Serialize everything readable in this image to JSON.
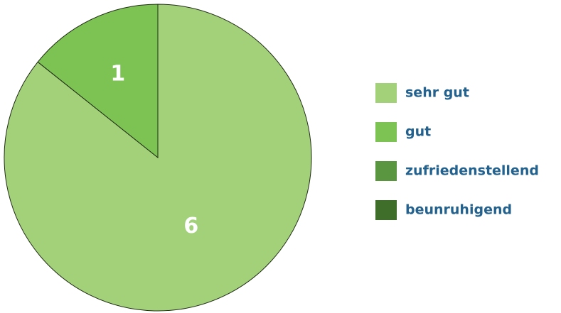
{
  "chart_data": {
    "type": "pie",
    "categories": [
      "sehr gut",
      "gut",
      "zufriedenstellend",
      "beunruhigend"
    ],
    "values": [
      6,
      1,
      0,
      0
    ],
    "colors": [
      "#a3d17a",
      "#7dc354",
      "#5a9640",
      "#3f6e2b"
    ],
    "legend": "right"
  }
}
